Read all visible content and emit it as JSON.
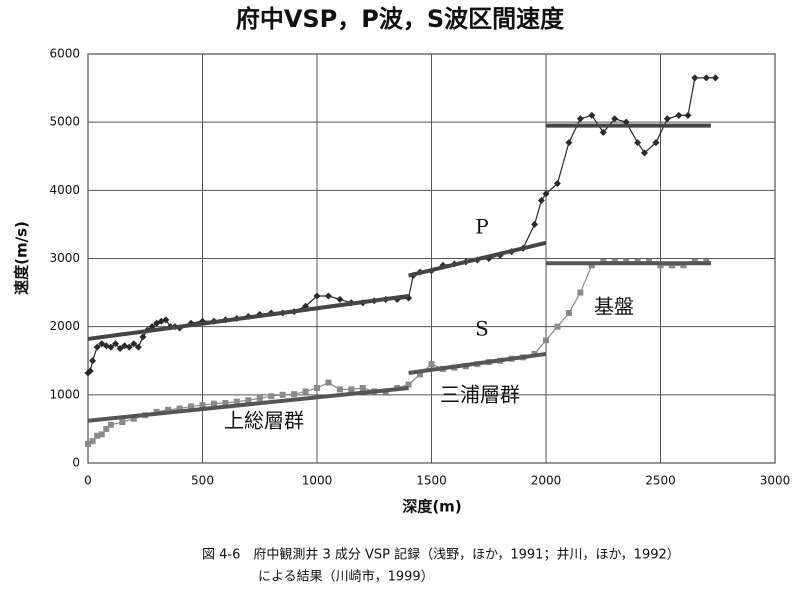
{
  "chart_data": {
    "type": "line",
    "title": "府中VSP，P波，S波区間速度",
    "xlabel": "深度(m)",
    "ylabel": "速度(m/s)",
    "xlim": [
      0,
      3000
    ],
    "ylim": [
      0,
      6000
    ],
    "xticks": [
      0,
      500,
      1000,
      1500,
      2000,
      2500,
      3000
    ],
    "yticks": [
      0,
      1000,
      2000,
      3000,
      4000,
      5000,
      6000
    ],
    "grid": true,
    "series": [
      {
        "marker": "diamond",
        "color": "#2a2a2a",
        "x": [
          0,
          10,
          20,
          40,
          60,
          80,
          100,
          120,
          140,
          160,
          180,
          200,
          220,
          240,
          260,
          280,
          300,
          320,
          340,
          360,
          380,
          400,
          450,
          500,
          550,
          600,
          650,
          700,
          750,
          800,
          850,
          900,
          950,
          1000,
          1050,
          1100,
          1150,
          1200,
          1250,
          1300,
          1350,
          1400,
          1420,
          1450,
          1500,
          1550,
          1600,
          1650,
          1700,
          1750,
          1800,
          1850,
          1900,
          1950,
          1980,
          2000,
          2050,
          2100,
          2150,
          2200,
          2250,
          2300,
          2350,
          2400,
          2430,
          2480,
          2530,
          2580,
          2620,
          2650,
          2700,
          2740
        ],
        "values": [
          1320,
          1350,
          1500,
          1700,
          1750,
          1720,
          1700,
          1750,
          1680,
          1720,
          1700,
          1750,
          1700,
          1850,
          1950,
          2000,
          2050,
          2080,
          2100,
          2000,
          2000,
          1980,
          2050,
          2080,
          2080,
          2100,
          2120,
          2150,
          2180,
          2200,
          2200,
          2220,
          2300,
          2450,
          2450,
          2400,
          2350,
          2350,
          2380,
          2400,
          2400,
          2420,
          2750,
          2800,
          2820,
          2900,
          2920,
          2950,
          2980,
          3000,
          3050,
          3100,
          3150,
          3500,
          3850,
          3950,
          4100,
          4700,
          5050,
          5100,
          4850,
          5050,
          5000,
          4700,
          4550,
          4700,
          5050,
          5100,
          5100,
          5650,
          5650,
          5650
        ]
      },
      {
        "marker": "square",
        "color": "#8a8a8a",
        "x": [
          0,
          20,
          40,
          60,
          80,
          100,
          150,
          200,
          250,
          300,
          350,
          400,
          450,
          500,
          550,
          600,
          650,
          700,
          750,
          800,
          850,
          900,
          950,
          1000,
          1050,
          1100,
          1150,
          1200,
          1250,
          1300,
          1350,
          1400,
          1450,
          1500,
          1550,
          1600,
          1650,
          1700,
          1750,
          1800,
          1850,
          1900,
          1950,
          2000,
          2050,
          2100,
          2150,
          2200,
          2250,
          2300,
          2350,
          2400,
          2450,
          2500,
          2550,
          2600,
          2650,
          2700
        ],
        "values": [
          280,
          320,
          400,
          420,
          500,
          560,
          600,
          650,
          700,
          750,
          780,
          800,
          830,
          850,
          870,
          880,
          900,
          920,
          950,
          980,
          1000,
          1010,
          1050,
          1100,
          1180,
          1080,
          1080,
          1100,
          1050,
          1050,
          1100,
          1150,
          1300,
          1450,
          1380,
          1400,
          1420,
          1450,
          1480,
          1500,
          1530,
          1550,
          1600,
          1800,
          2000,
          2200,
          2500,
          2900,
          2950,
          2950,
          2950,
          2950,
          2950,
          2900,
          2900,
          2900,
          2950,
          2950
        ]
      },
      {
        "marker": "none",
        "color": "#444444",
        "x": [
          0,
          1400,
          1400,
          1400,
          2000,
          2000,
          2000,
          2720
        ],
        "values": [
          1820,
          2450,
          null,
          2750,
          3230,
          null,
          4950,
          4950
        ]
      },
      {
        "marker": "none",
        "color": "#555555",
        "x": [
          0,
          1400,
          1400,
          1400,
          2000,
          2000,
          2000,
          2720
        ],
        "values": [
          620,
          1100,
          null,
          1320,
          1600,
          null,
          2930,
          2930
        ]
      }
    ],
    "annotations": [
      "P",
      "S",
      "基盤",
      "三浦層群",
      "上総層群"
    ],
    "caption": [
      "図 4-6　府中観測井 3 成分 VSP 記録（浅野，ほか，1991；井川，ほか，1992）",
      "による結果（川崎市，1999）"
    ]
  }
}
